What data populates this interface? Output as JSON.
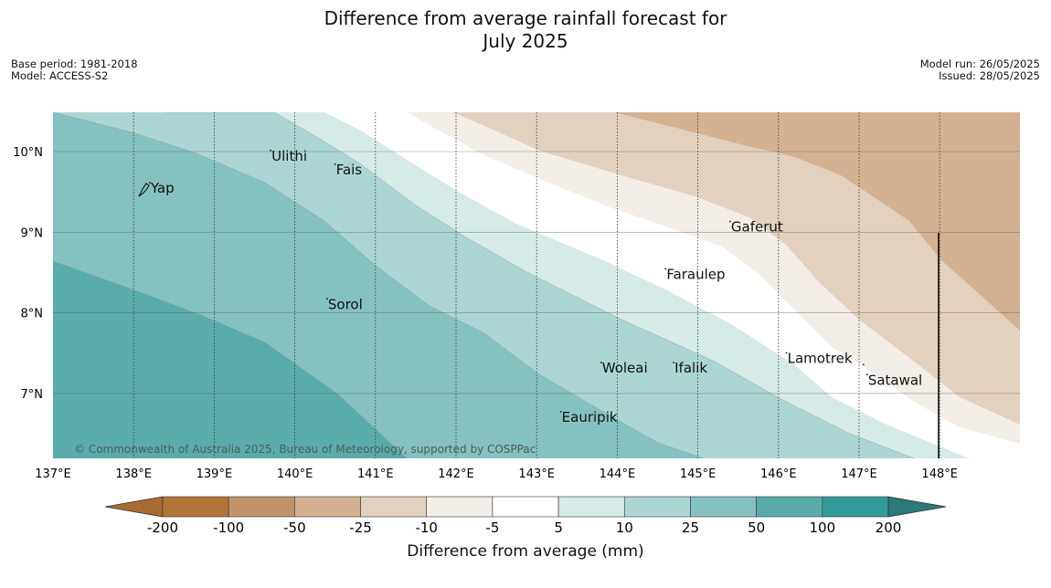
{
  "title_line1": "Difference from average rainfall forecast for",
  "title_line2": "July 2025",
  "meta_left": {
    "base_period": "Base period: 1981-2018",
    "model": "Model: ACCESS-S2"
  },
  "meta_right": {
    "model_run": "Model run: 26/05/2025",
    "issued": "Issued: 28/05/2025"
  },
  "map": {
    "lon_range": [
      137,
      149
    ],
    "lat_range": [
      6.2,
      10.5
    ],
    "x_ticks": [
      "137°E",
      "138°E",
      "139°E",
      "140°E",
      "141°E",
      "142°E",
      "143°E",
      "144°E",
      "145°E",
      "146°E",
      "147°E",
      "148°E"
    ],
    "y_ticks": [
      "10°N",
      "9°N",
      "8°N",
      "7°N"
    ],
    "places": [
      {
        "name": "Yap",
        "lon": 138.2,
        "lat": 9.5
      },
      {
        "name": "Ulithi",
        "lon": 139.7,
        "lat": 9.9
      },
      {
        "name": "Fais",
        "lon": 140.5,
        "lat": 9.73
      },
      {
        "name": "Gaferut",
        "lon": 145.4,
        "lat": 9.02
      },
      {
        "name": "Faraulep",
        "lon": 144.6,
        "lat": 8.43
      },
      {
        "name": "Sorol",
        "lon": 140.4,
        "lat": 8.06
      },
      {
        "name": "Lamotrek",
        "lon": 146.1,
        "lat": 7.39
      },
      {
        "name": "Woleai",
        "lon": 143.8,
        "lat": 7.27
      },
      {
        "name": "Ifalik",
        "lon": 144.7,
        "lat": 7.27
      },
      {
        "name": "Satawal",
        "lon": 147.1,
        "lat": 7.12
      },
      {
        "name": "Eauripik",
        "lon": 143.3,
        "lat": 6.66
      }
    ],
    "copyright": "© Commonwealth of Australia 2025, Bureau of Meteorology, supported by COSPPac"
  },
  "colorbar": {
    "labels": [
      "-200",
      "-100",
      "-50",
      "-25",
      "-10",
      "-5",
      "5",
      "10",
      "25",
      "50",
      "100",
      "200"
    ],
    "colors": [
      "#a86b33",
      "#b27537",
      "#c2926a",
      "#d4b190",
      "#e3d1bf",
      "#f3eee8",
      "#ffffff",
      "#d6eae8",
      "#acd6d4",
      "#84c2bf",
      "#5aacaa",
      "#339b98",
      "#2c7a77"
    ],
    "label": "Difference from average (mm)"
  },
  "contour_colors": {
    "c100": "#5aacaa",
    "c50": "#84c2bf",
    "c25": "#acd6d4",
    "c10": "#d6eae8",
    "white": "#ffffff",
    "m5": "#f3eee8",
    "m10": "#e3d1bf",
    "m25": "#d4b190"
  }
}
